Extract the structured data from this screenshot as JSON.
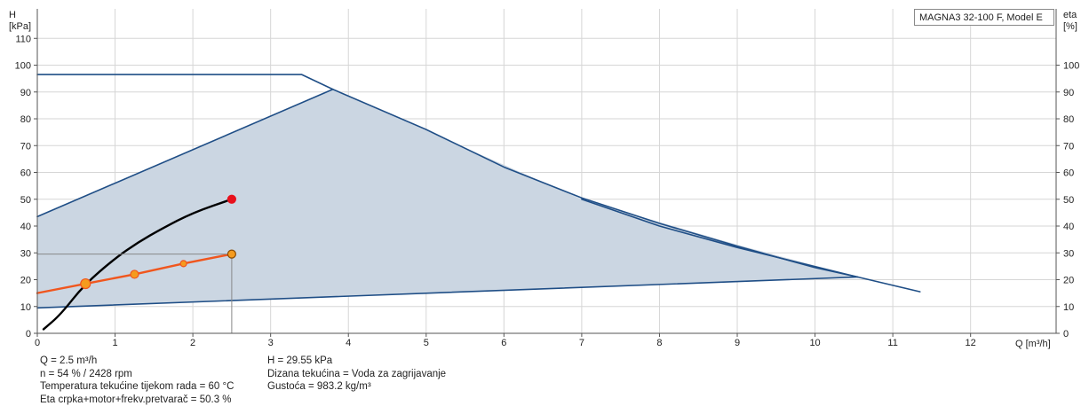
{
  "chart_data": {
    "type": "line",
    "legend_text": "MAGNA3 32-100 F, Model E",
    "y_left_label": [
      "H",
      "[kPa]"
    ],
    "y_right_label": [
      "eta",
      "[%]"
    ],
    "x_label": "Q [m³/h]",
    "xlim": [
      0,
      13.1
    ],
    "ylim": [
      0,
      121
    ],
    "x_ticks": [
      0,
      1,
      2,
      3,
      4,
      5,
      6,
      7,
      8,
      9,
      10,
      11,
      12
    ],
    "y_ticks": [
      0,
      10,
      20,
      30,
      40,
      50,
      60,
      70,
      80,
      90,
      100,
      110
    ],
    "y_right_ticks": [
      0,
      10,
      20,
      30,
      40,
      50,
      60,
      70,
      80,
      90,
      100
    ],
    "grid": true,
    "operating_area": {
      "color": "#cbd6e2",
      "polygon": [
        [
          0,
          43.5
        ],
        [
          3.8,
          91
        ],
        [
          7,
          50
        ],
        [
          9,
          33
        ],
        [
          10.55,
          21
        ],
        [
          0,
          9.5
        ]
      ]
    },
    "series": [
      {
        "color": "#1f4e86",
        "points": [
          [
            0,
            96.5
          ],
          [
            3.4,
            96.5
          ],
          [
            3.8,
            91
          ],
          [
            5,
            76
          ],
          [
            6,
            62
          ],
          [
            7,
            50.5
          ],
          [
            8,
            41
          ],
          [
            9,
            32.5
          ],
          [
            10,
            24.5
          ],
          [
            10.55,
            21
          ],
          [
            11.35,
            15.5
          ]
        ]
      },
      {
        "color": "#1f4e86",
        "points": [
          [
            0,
            43.5
          ],
          [
            3.8,
            91
          ]
        ]
      },
      {
        "color": "#1f4e86",
        "points": [
          [
            0,
            9.5
          ],
          [
            10.55,
            21
          ]
        ]
      },
      {
        "color": "#1f4e86",
        "points": [
          [
            7,
            50
          ],
          [
            8,
            40
          ],
          [
            9,
            32
          ],
          [
            10.55,
            21
          ]
        ]
      },
      {
        "color": "#000000",
        "points": [
          [
            0.08,
            1.5
          ],
          [
            0.3,
            7
          ],
          [
            0.6,
            18
          ],
          [
            1.0,
            28
          ],
          [
            1.3,
            34
          ],
          [
            1.6,
            39
          ],
          [
            2.0,
            45
          ],
          [
            2.5,
            50
          ]
        ]
      },
      {
        "color": "#f0561e",
        "points": [
          [
            0,
            15
          ],
          [
            0.62,
            18.5
          ],
          [
            1.25,
            22
          ],
          [
            1.88,
            26
          ],
          [
            2.5,
            29.55
          ]
        ]
      }
    ],
    "markers": [
      {
        "x": 2.5,
        "y": 50,
        "color": "#e8101c",
        "stroke": "#e8101c"
      },
      {
        "x": 0.62,
        "y": 18.5,
        "color": "#f59b1e",
        "stroke": "#f0561e"
      },
      {
        "x": 1.25,
        "y": 22,
        "color": "#f59b1e",
        "stroke": "#f0561e"
      },
      {
        "x": 1.88,
        "y": 26,
        "color": "#f59b1e",
        "stroke": "#f0561e"
      },
      {
        "x": 2.5,
        "y": 29.55,
        "color": "#f59b1e",
        "stroke": "#8a4a00"
      }
    ],
    "duty_point": {
      "x": 2.5,
      "y": 29.55
    }
  },
  "info_left": [
    "Q = 2.5 m³/h",
    "n = 54 % / 2428 rpm",
    "Temperatura tekućine tijekom rada = 60 °C",
    "Eta crpka+motor+frekv.pretvarač = 50.3 %"
  ],
  "info_right": [
    "H = 29.55 kPa",
    "Dizana tekućina = Voda za zagrijavanje",
    "Gustoća = 983.2 kg/m³"
  ]
}
